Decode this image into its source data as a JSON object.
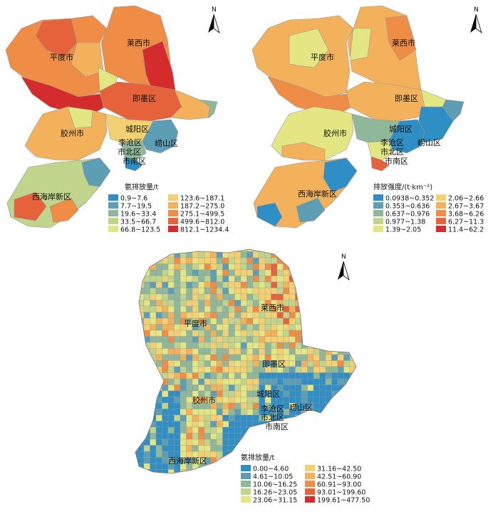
{
  "maps": [
    {
      "id": "emission",
      "labels": {
        "pingdu": "平度市",
        "laixi": "莱西市",
        "jimo": "即墨区",
        "jiaozhou": "胶州市",
        "chengyang": "城阳区",
        "licang": "李沧区",
        "laoshan": "崂山区",
        "shibei": "市北区",
        "shinan": "市南区",
        "xihaian": "西海岸新区"
      },
      "legend": {
        "title": "氨排放量/t",
        "items": [
          {
            "label": "0.9~7.6",
            "color": "#2f8fc5"
          },
          {
            "label": "7.7~19.5",
            "color": "#5d9eb4"
          },
          {
            "label": "19.6~33.4",
            "color": "#8fb79a"
          },
          {
            "label": "33.5~66.7",
            "color": "#c0d48c"
          },
          {
            "label": "66.8~123.5",
            "color": "#e4e684"
          },
          {
            "label": "123.6~187.1",
            "color": "#f3d071"
          },
          {
            "label": "187.2~275.0",
            "color": "#f3b15c"
          },
          {
            "label": "275.1~499.5",
            "color": "#ef8c46"
          },
          {
            "label": "499.6~812.0",
            "color": "#e6623a"
          },
          {
            "label": "812.1~1234.4",
            "color": "#d42c2c"
          }
        ]
      }
    },
    {
      "id": "intensity",
      "labels": {
        "pingdu": "平度市",
        "laixi": "莱西市",
        "jimo": "即墨区",
        "jiaozhou": "胶州市",
        "chengyang": "城阳区",
        "licang": "李沧区",
        "laoshan": "崂山区",
        "shibei": "市北区",
        "shinan": "市南区",
        "xihaian": "西海岸新区"
      },
      "legend": {
        "title": "排放强度/(t·km⁻²)",
        "items": [
          {
            "label": "0.0938~0.352",
            "color": "#2f8fc5"
          },
          {
            "label": "0.353~0.636",
            "color": "#5d9eb4"
          },
          {
            "label": "0.637~0.976",
            "color": "#8fb79a"
          },
          {
            "label": "0.977~1.38",
            "color": "#c0d48c"
          },
          {
            "label": "1.39~2.05",
            "color": "#e4e684"
          },
          {
            "label": "2.06~2.66",
            "color": "#f3d071"
          },
          {
            "label": "2.67~3.67",
            "color": "#f3b15c"
          },
          {
            "label": "3.68~6.26",
            "color": "#ef8c46"
          },
          {
            "label": "6.27~11.3",
            "color": "#e6623a"
          },
          {
            "label": "11.4~62.2",
            "color": "#d42c2c"
          }
        ]
      }
    },
    {
      "id": "grid",
      "labels": {
        "pingdu": "平度市",
        "laixi": "莱西市",
        "jimo": "即墨区",
        "jiaozhou": "胶州市",
        "chengyang": "城阳区",
        "licang": "李沧区",
        "laoshan": "崂山区",
        "shibei": "市北区",
        "shinan": "市南区",
        "xihaian": "西海岸新区"
      },
      "legend": {
        "title": "氨排放量/t",
        "items": [
          {
            "label": "0.00~4.60",
            "color": "#2f8fc5"
          },
          {
            "label": "4.61~10.05",
            "color": "#5d9eb4"
          },
          {
            "label": "10.06~16.25",
            "color": "#8fb79a"
          },
          {
            "label": "16.26~23.05",
            "color": "#c0d48c"
          },
          {
            "label": "23.06~31.15",
            "color": "#e4e684"
          },
          {
            "label": "31.16~42.50",
            "color": "#f3d071"
          },
          {
            "label": "42.51~60.90",
            "color": "#f3b15c"
          },
          {
            "label": "60.91~93.00",
            "color": "#ef8c46"
          },
          {
            "label": "93.01~199.60",
            "color": "#e6623a"
          },
          {
            "label": "199.61~477.50",
            "color": "#d42c2c"
          }
        ]
      }
    }
  ],
  "north": "N",
  "palette": {
    "sea": "#ffffff",
    "boundary": "#8a8a8a"
  }
}
